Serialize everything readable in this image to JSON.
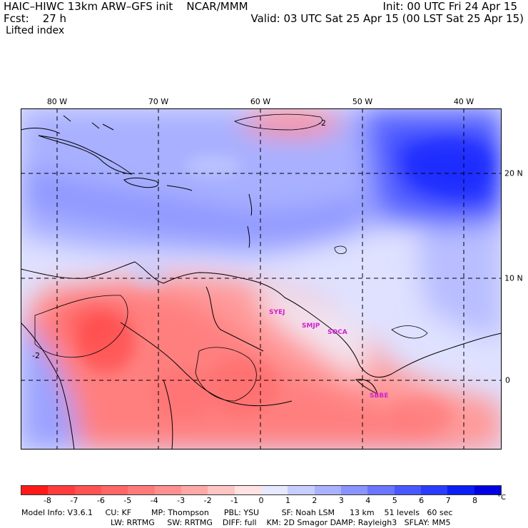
{
  "header": {
    "model_line": "HAIC–HIWC 13km ARW–GFS init    NCAR/MMM",
    "init": "Init: 00 UTC Fri 24 Apr 15",
    "fcst": "Fcst:    27 h",
    "valid": "Valid: 03 UTC Sat 25 Apr 15 (00 LST Sat 25 Apr 15)",
    "field": "Lifted index"
  },
  "map": {
    "lon_labels": [
      "80 W",
      "70 W",
      "60 W",
      "50 W",
      "40 W"
    ],
    "lat_labels": [
      "20 N",
      "10 N",
      "0"
    ],
    "contour_labels": [
      "-2",
      "-2"
    ],
    "sites": [
      "SYEJ",
      "SMJP",
      "SOCA",
      "SBBE"
    ]
  },
  "colorbar": {
    "ticks": [
      "-8",
      "-7",
      "-6",
      "-5",
      "-4",
      "-3",
      "-2",
      "-1",
      "0",
      "1",
      "2",
      "3",
      "4",
      "5",
      "6",
      "7",
      "8"
    ],
    "unit": "°C",
    "colors": [
      "#ff1a1a",
      "#ff3b3b",
      "#ff5252",
      "#ff6666",
      "#ff7a7a",
      "#ff9090",
      "#ffa8a8",
      "#ffc4c4",
      "#ffe2e2",
      "#e6e8ff",
      "#c8cdff",
      "#aab2ff",
      "#8a94ff",
      "#6a76ff",
      "#4a58ff",
      "#2a3cff",
      "#0a1ef5",
      "#0000e0"
    ]
  },
  "footer": {
    "line1": "Model Info: V3.6.1     CU: KF        MP: Thompson      PBL: YSU         SF: Noah LSM      13 km    51 levels   60 sec",
    "line2": "LW: RRTMG     SW: RRTMG    DIFF: full    KM: 2D Smagor DAMP: Rayleigh3   SFLAY: MM5"
  }
}
